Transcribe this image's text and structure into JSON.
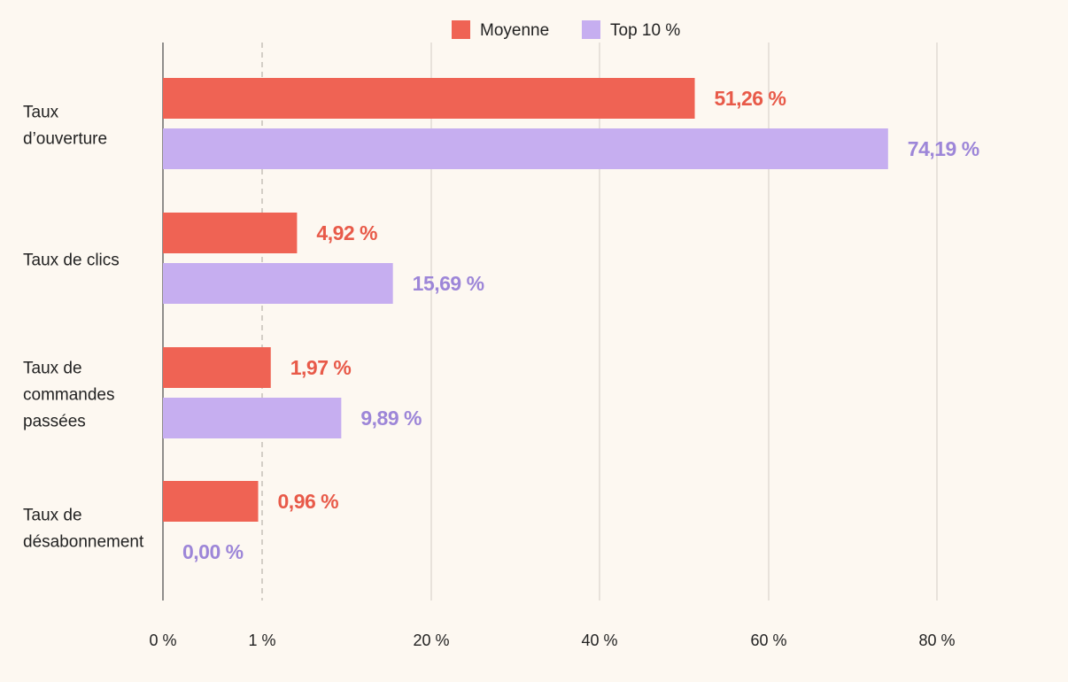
{
  "chart_data": {
    "type": "bar",
    "orientation": "horizontal",
    "scale": "piecewise",
    "categories": [
      [
        "Taux",
        "d’ouverture"
      ],
      [
        "Taux de clics"
      ],
      [
        "Taux de",
        "commandes",
        "passées"
      ],
      [
        "Taux de",
        "désabonnement"
      ]
    ],
    "series": [
      {
        "name": "Moyenne",
        "color": "#ef6354",
        "label_color": "#e85a49",
        "values": [
          51.26,
          4.92,
          1.97,
          0.96
        ],
        "labels": [
          "51,26 %",
          "4,92 %",
          "1,97 %",
          "0,96 %"
        ]
      },
      {
        "name": "Top 10 %",
        "color": "#c6aef0",
        "label_color": "#9d86d8",
        "values": [
          74.19,
          15.69,
          9.89,
          0.0
        ],
        "labels": [
          "74,19 %",
          "15,69 %",
          "9,89 %",
          "0,00 %"
        ]
      }
    ],
    "ticks": [
      {
        "value": 0,
        "label": "0 %",
        "style": "axis"
      },
      {
        "value": 1,
        "label": "1 %",
        "style": "dashed"
      },
      {
        "value": 20,
        "label": "20 %",
        "style": "solid"
      },
      {
        "value": 40,
        "label": "40 %",
        "style": "solid"
      },
      {
        "value": 60,
        "label": "60 %",
        "style": "solid"
      },
      {
        "value": 80,
        "label": "80 %",
        "style": "solid"
      }
    ],
    "xlim": [
      0,
      80
    ],
    "grid": true,
    "legend_position": "top-center"
  }
}
